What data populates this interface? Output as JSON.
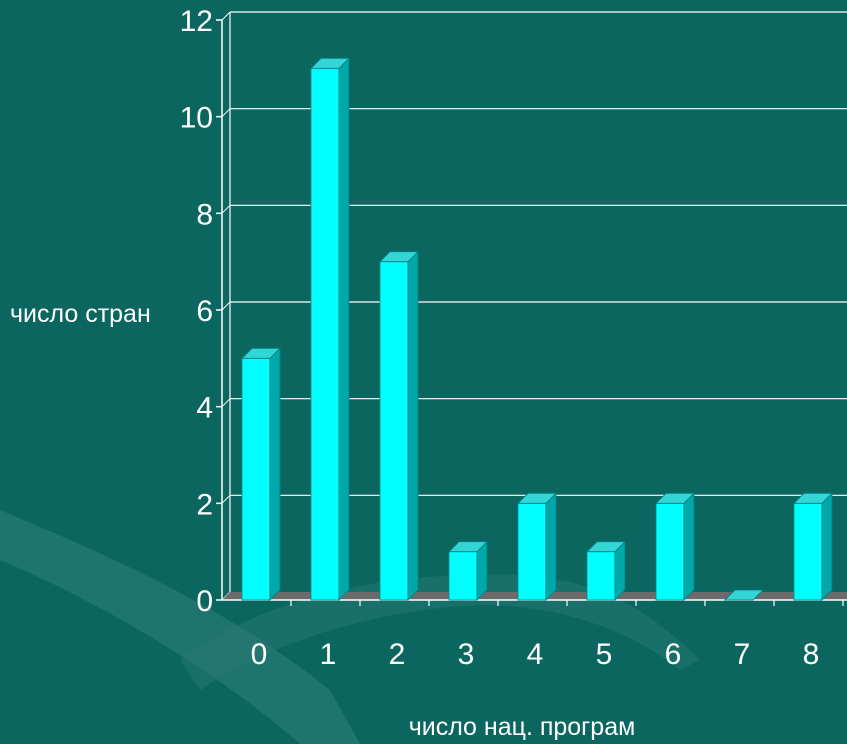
{
  "chart_data": {
    "type": "bar",
    "categories": [
      "0",
      "1",
      "2",
      "3",
      "4",
      "5",
      "6",
      "7",
      "8"
    ],
    "values": [
      5,
      11,
      7,
      1,
      2,
      1,
      2,
      0,
      2
    ],
    "title": "",
    "xlabel": "число нац. програм",
    "ylabel": "число стран",
    "ylim": [
      0,
      12
    ],
    "yticks": [
      "0",
      "2",
      "4",
      "6",
      "8",
      "10",
      "12"
    ],
    "grid": true,
    "legend": "none",
    "colors": {
      "background": "#0b6660",
      "bar_front": "#00ffff",
      "bar_side": "#00a9a9",
      "bar_top": "#33d6d6",
      "floor": "#6b6b6b",
      "grid": "#ffffff",
      "text": "#ffffff"
    }
  }
}
